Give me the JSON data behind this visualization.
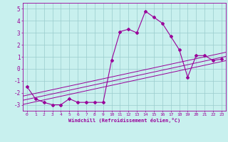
{
  "x": [
    0,
    1,
    2,
    3,
    4,
    5,
    6,
    7,
    8,
    9,
    10,
    11,
    12,
    13,
    14,
    15,
    16,
    17,
    18,
    19,
    20,
    21,
    22,
    23
  ],
  "y_main": [
    -1.5,
    -2.5,
    -2.8,
    -3.0,
    -3.0,
    -2.5,
    -2.8,
    -2.8,
    -2.8,
    -2.8,
    0.7,
    3.1,
    3.3,
    3.0,
    4.8,
    4.3,
    3.8,
    2.7,
    1.6,
    -0.7,
    1.1,
    1.1,
    0.7,
    0.8
  ],
  "line_color": "#990099",
  "marker": "D",
  "markersize": 2,
  "bg_color": "#c8f0ee",
  "grid_color": "#99cccc",
  "axis_color": "#990099",
  "tick_label_color": "#990099",
  "xlabel": "Windchill (Refroidissement éolien,°C)",
  "xlim": [
    -0.5,
    23.5
  ],
  "ylim": [
    -3.5,
    5.5
  ],
  "yticks": [
    -3,
    -2,
    -1,
    0,
    1,
    2,
    3,
    4,
    5
  ],
  "xticks": [
    0,
    1,
    2,
    3,
    4,
    5,
    6,
    7,
    8,
    9,
    10,
    11,
    12,
    13,
    14,
    15,
    16,
    17,
    18,
    19,
    20,
    21,
    22,
    23
  ],
  "reg_lines": [
    [
      -2.2,
      1.3
    ],
    [
      -2.55,
      0.95
    ],
    [
      -2.9,
      0.6
    ]
  ]
}
